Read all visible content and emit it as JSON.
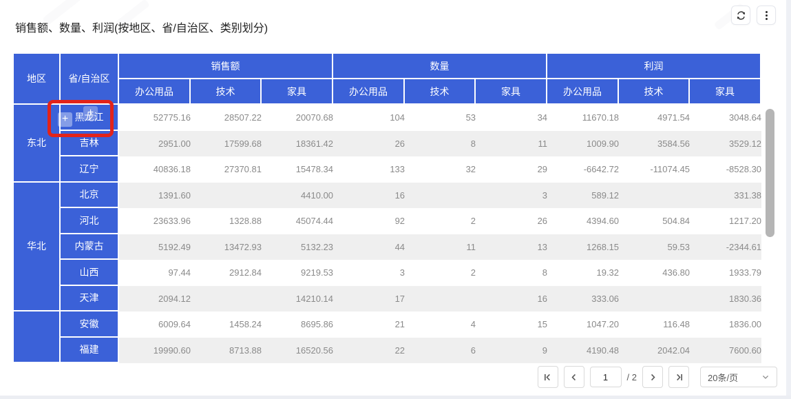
{
  "title": "销售额、数量、利润(按地区、省/自治区、类别划分)",
  "toolbar": {
    "icons": {
      "refresh": "circular-arrows",
      "more": "vertical-ellipsis"
    }
  },
  "table": {
    "corner_headers": {
      "region": "地区",
      "province": "省/自治区"
    },
    "groups": [
      "销售额",
      "数量",
      "利润"
    ],
    "sub_headers": [
      "办公用品",
      "技术",
      "家具"
    ],
    "regions": [
      {
        "name": "东北",
        "rows": [
          {
            "province": "黑龙江",
            "annotated": true,
            "values": [
              "52775.16",
              "28507.22",
              "20070.68",
              "104",
              "53",
              "34",
              "11670.18",
              "4971.54",
              "3048.64"
            ]
          },
          {
            "province": "吉林",
            "values": [
              "2951.00",
              "17599.68",
              "18361.42",
              "26",
              "8",
              "11",
              "1009.90",
              "3584.56",
              "3529.12"
            ]
          },
          {
            "province": "辽宁",
            "values": [
              "40836.18",
              "27370.81",
              "15478.34",
              "133",
              "32",
              "29",
              "-6642.72",
              "-11074.45",
              "-8528.30"
            ]
          }
        ]
      },
      {
        "name": "华北",
        "rows": [
          {
            "province": "北京",
            "values": [
              "1391.60",
              "",
              "4410.00",
              "16",
              "",
              "3",
              "589.12",
              "",
              "331.38"
            ]
          },
          {
            "province": "河北",
            "values": [
              "23633.96",
              "1328.88",
              "45074.44",
              "92",
              "2",
              "26",
              "4394.60",
              "504.84",
              "1217.20"
            ]
          },
          {
            "province": "内蒙古",
            "values": [
              "5192.49",
              "13472.93",
              "5132.23",
              "44",
              "11",
              "13",
              "1268.15",
              "59.53",
              "-2344.61"
            ]
          },
          {
            "province": "山西",
            "values": [
              "97.44",
              "2912.84",
              "9219.53",
              "3",
              "2",
              "8",
              "19.32",
              "436.80",
              "1933.79"
            ]
          },
          {
            "province": "天津",
            "values": [
              "2094.12",
              "",
              "14210.14",
              "17",
              "",
              "16",
              "333.06",
              "",
              "1830.36"
            ]
          }
        ]
      },
      {
        "name": "",
        "rows": [
          {
            "province": "安徽",
            "values": [
              "6009.64",
              "1458.24",
              "8695.86",
              "21",
              "4",
              "15",
              "1047.20",
              "116.48",
              "1836.00"
            ]
          },
          {
            "province": "福建",
            "values": [
              "19990.60",
              "8713.88",
              "16520.56",
              "22",
              "6",
              "9",
              "4190.48",
              "2042.04",
              "7600.60"
            ]
          }
        ]
      }
    ]
  },
  "annotation": {
    "plus_label": "+",
    "icons": {
      "expand": "plus"
    }
  },
  "pagination": {
    "page": "1",
    "total_label": "/ 2",
    "page_size_label": "20条/页",
    "icons": {
      "first_page": "chevron-bar-left",
      "prev_page": "chevron-left",
      "next_page": "chevron-right",
      "last_page": "chevron-bar-right",
      "page_size_dropdown": "chevron-down"
    }
  },
  "colors": {
    "header_blue": "#3b61d8",
    "row_alt_gray": "#efefef",
    "value_text": "#8a8a8a",
    "annotation_red": "#e2231a",
    "control_border": "#d9d9d9"
  }
}
